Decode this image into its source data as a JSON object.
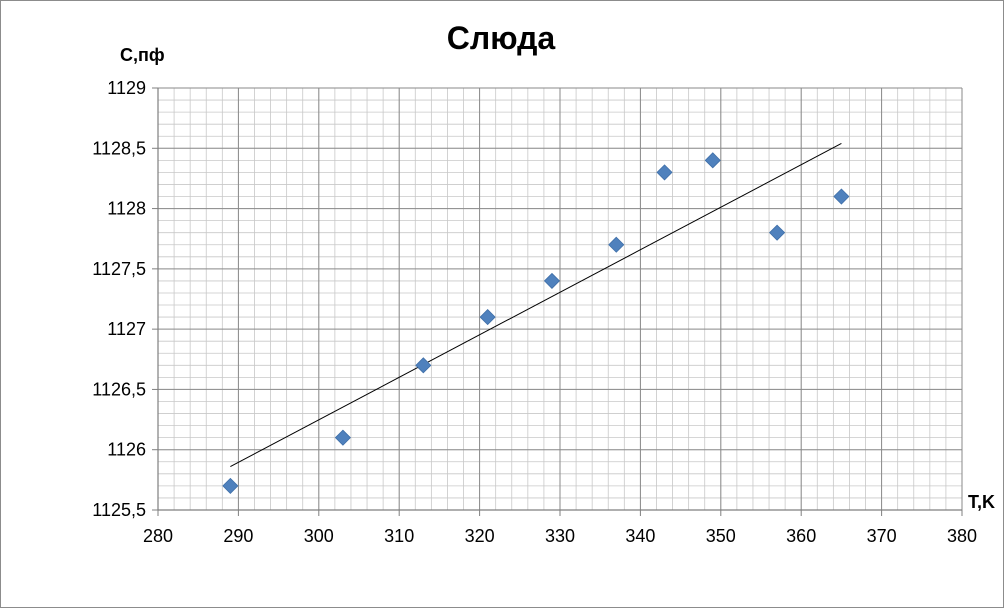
{
  "chart_data": {
    "type": "scatter",
    "title": "Слюда",
    "xlabel": "T,K",
    "ylabel": "C,пф",
    "xlim": [
      280,
      380
    ],
    "ylim": [
      1125.5,
      1129
    ],
    "x_ticks": [
      "280",
      "290",
      "300",
      "310",
      "320",
      "330",
      "340",
      "350",
      "360",
      "370",
      "380"
    ],
    "y_ticks": [
      "1125,5",
      "1126",
      "1126,5",
      "1127",
      "1127,5",
      "1128",
      "1128,5",
      "1129"
    ],
    "grid": true,
    "legend": "none",
    "marker_color": "#4f81bd",
    "series": [
      {
        "points": [
          {
            "x": 289,
            "y": 1125.7
          },
          {
            "x": 303,
            "y": 1126.1
          },
          {
            "x": 313,
            "y": 1126.7
          },
          {
            "x": 321,
            "y": 1127.1
          },
          {
            "x": 329,
            "y": 1127.4
          },
          {
            "x": 337,
            "y": 1127.7
          },
          {
            "x": 343,
            "y": 1128.3
          },
          {
            "x": 349,
            "y": 1128.4
          },
          {
            "x": 357,
            "y": 1127.8
          },
          {
            "x": 365,
            "y": 1128.1
          }
        ]
      }
    ],
    "trendline": {
      "type": "linear",
      "from": {
        "x": 289,
        "y": 1125.86
      },
      "to": {
        "x": 365,
        "y": 1128.54
      },
      "color": "#000000"
    }
  }
}
